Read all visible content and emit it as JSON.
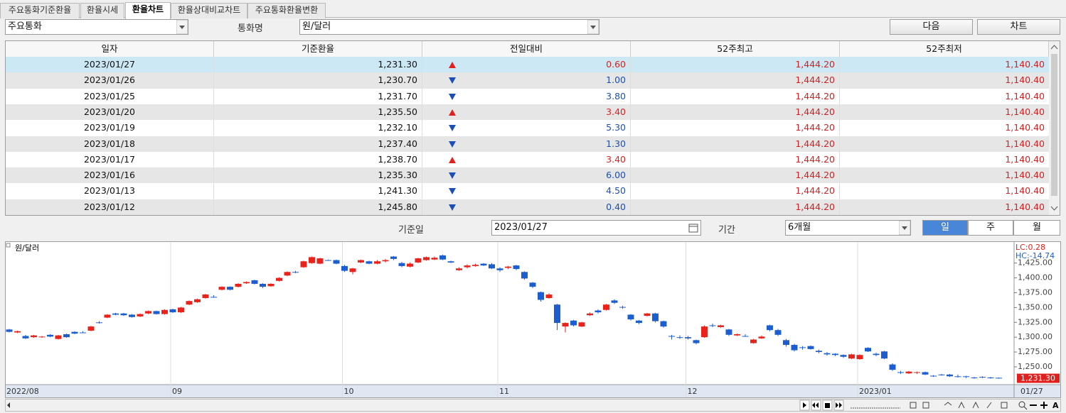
{
  "tabs": [
    "주요통화기준환율",
    "환율시세",
    "환율차트",
    "환율상대비교차트",
    "주요통화환율변환"
  ],
  "active_tab": 2,
  "toolbar": {
    "group": "주요통화",
    "currency_label": "통화명",
    "currency": "원/달러",
    "buttons": [
      "다음",
      "차트"
    ]
  },
  "table": {
    "headers": [
      "일자",
      "기준환율",
      "전일대비",
      "52주최고",
      "52주최저"
    ],
    "selected_row": 0,
    "rows": [
      {
        "date": "2023/01/27",
        "rate": "1,231.30",
        "direction": "up",
        "change": "0.60",
        "high": "1,444.20",
        "low": "1,140.40"
      },
      {
        "date": "2023/01/26",
        "rate": "1,230.70",
        "direction": "down",
        "change": "1.00",
        "high": "1,444.20",
        "low": "1,140.40"
      },
      {
        "date": "2023/01/25",
        "rate": "1,231.70",
        "direction": "down",
        "change": "3.80",
        "high": "1,444.20",
        "low": "1,140.40"
      },
      {
        "date": "2023/01/20",
        "rate": "1,235.50",
        "direction": "up",
        "change": "3.40",
        "high": "1,444.20",
        "low": "1,140.40"
      },
      {
        "date": "2023/01/19",
        "rate": "1,232.10",
        "direction": "down",
        "change": "5.30",
        "high": "1,444.20",
        "low": "1,140.40"
      },
      {
        "date": "2023/01/18",
        "rate": "1,237.40",
        "direction": "down",
        "change": "1.30",
        "high": "1,444.20",
        "low": "1,140.40"
      },
      {
        "date": "2023/01/17",
        "rate": "1,238.70",
        "direction": "up",
        "change": "3.40",
        "high": "1,444.20",
        "low": "1,140.40"
      },
      {
        "date": "2023/01/16",
        "rate": "1,235.30",
        "direction": "down",
        "change": "6.00",
        "high": "1,444.20",
        "low": "1,140.40"
      },
      {
        "date": "2023/01/13",
        "rate": "1,241.30",
        "direction": "down",
        "change": "4.50",
        "high": "1,444.20",
        "low": "1,140.40"
      },
      {
        "date": "2023/01/12",
        "rate": "1,245.80",
        "direction": "down",
        "change": "0.40",
        "high": "1,444.20",
        "low": "1,140.40"
      }
    ]
  },
  "controls": {
    "date_label": "기준일",
    "date": "2023/01/27",
    "period_label": "기간",
    "period": "6개월",
    "period_buttons": [
      "일",
      "주",
      "월"
    ],
    "active_period": 0
  },
  "chart_data": {
    "type": "candlestick",
    "legend": "원/달러",
    "lc_label": "LC:0.28",
    "hc_label": "HC:-14.74",
    "up_color": "#e8231c",
    "down_color": "#1c5ecf",
    "grid": true,
    "ylim": [
      1220,
      1457
    ],
    "yticks": [
      {
        "value": 1250,
        "label": "1,250.00"
      },
      {
        "value": 1275,
        "label": "1,275.00"
      },
      {
        "value": 1300,
        "label": "1,300.00"
      },
      {
        "value": 1325,
        "label": "1,325.00"
      },
      {
        "value": 1350,
        "label": "1,350.00"
      },
      {
        "value": 1375,
        "label": "1,375.00"
      },
      {
        "value": 1400,
        "label": "1,400.00"
      },
      {
        "value": 1425,
        "label": "1,425.00"
      }
    ],
    "last_price_label": "1,231.30",
    "last_date_label": "01/27",
    "categories": [
      "2022/08",
      null,
      null,
      null,
      null,
      null,
      null,
      null,
      null,
      null,
      null,
      null,
      null,
      null,
      null,
      null,
      null,
      null,
      null,
      null,
      "09",
      null,
      null,
      null,
      null,
      null,
      null,
      null,
      null,
      null,
      null,
      null,
      null,
      null,
      null,
      null,
      null,
      null,
      null,
      null,
      null,
      "10",
      null,
      null,
      null,
      null,
      null,
      null,
      null,
      null,
      null,
      null,
      null,
      null,
      null,
      null,
      null,
      null,
      null,
      null,
      "11",
      null,
      null,
      null,
      null,
      null,
      null,
      null,
      null,
      null,
      null,
      null,
      null,
      null,
      null,
      null,
      null,
      null,
      null,
      null,
      null,
      null,
      null,
      "12",
      null,
      null,
      null,
      null,
      null,
      null,
      null,
      null,
      null,
      null,
      null,
      null,
      null,
      null,
      null,
      null,
      null,
      null,
      null,
      null,
      "2023/01",
      null,
      null,
      null,
      null,
      null,
      null,
      null,
      null,
      null,
      null,
      null,
      null,
      null,
      null,
      null,
      null,
      null
    ],
    "ohlc": [
      [
        1313,
        1314,
        1308,
        1309
      ],
      [
        1308,
        1311,
        1307,
        1310
      ],
      [
        1302,
        1304,
        1297,
        1298
      ],
      [
        1300,
        1304,
        1299,
        1303
      ],
      [
        1300,
        1302,
        1299,
        1301
      ],
      [
        1304,
        1305,
        1300,
        1301
      ],
      [
        1297,
        1304,
        1296,
        1303
      ],
      [
        1305,
        1306,
        1299,
        1300
      ],
      [
        1309,
        1310,
        1305,
        1306
      ],
      [
        1308,
        1310,
        1307,
        1308
      ],
      [
        1311,
        1319,
        1310,
        1318
      ],
      [
        1325,
        1327,
        1323,
        1325
      ],
      [
        1333,
        1339,
        1332,
        1338
      ],
      [
        1340,
        1341,
        1337,
        1338
      ],
      [
        1340,
        1341,
        1336,
        1337
      ],
      [
        1338,
        1339,
        1333,
        1334
      ],
      [
        1335,
        1340,
        1334,
        1339
      ],
      [
        1340,
        1345,
        1339,
        1344
      ],
      [
        1344,
        1345,
        1338,
        1339
      ],
      [
        1339,
        1347,
        1338,
        1346
      ],
      [
        1347,
        1348,
        1341,
        1342
      ],
      [
        1342,
        1351,
        1341,
        1350
      ],
      [
        1355,
        1362,
        1354,
        1361
      ],
      [
        1359,
        1365,
        1358,
        1364
      ],
      [
        1366,
        1373,
        1365,
        1372
      ],
      [
        1368,
        1371,
        1367,
        1368
      ],
      [
        1380,
        1386,
        1379,
        1385
      ],
      [
        1385,
        1386,
        1379,
        1380
      ],
      [
        1385,
        1391,
        1384,
        1390
      ],
      [
        1391,
        1394,
        1390,
        1393
      ],
      [
        1396,
        1397,
        1389,
        1390
      ],
      [
        1390,
        1391,
        1383,
        1385
      ],
      [
        1386,
        1391,
        1385,
        1390
      ],
      [
        1395,
        1401,
        1394,
        1400
      ],
      [
        1404,
        1411,
        1403,
        1410
      ],
      [
        1410,
        1412,
        1408,
        1410
      ],
      [
        1418,
        1429,
        1417,
        1428
      ],
      [
        1425,
        1436,
        1424,
        1435
      ],
      [
        1424,
        1434,
        1423,
        1433
      ],
      [
        1430,
        1431,
        1429,
        1430
      ],
      [
        1430,
        1431,
        1423,
        1424
      ],
      [
        1420,
        1422,
        1410,
        1412
      ],
      [
        1410,
        1417,
        1406,
        1416
      ],
      [
        1426,
        1431,
        1425,
        1430
      ],
      [
        1428,
        1429,
        1423,
        1424
      ],
      [
        1424,
        1430,
        1423,
        1428
      ],
      [
        1428,
        1432,
        1426,
        1430
      ],
      [
        1436,
        1437,
        1430,
        1432
      ],
      [
        1425,
        1427,
        1418,
        1420
      ],
      [
        1419,
        1426,
        1418,
        1424
      ],
      [
        1426,
        1434,
        1425,
        1433
      ],
      [
        1430,
        1436,
        1429,
        1435
      ],
      [
        1431,
        1436,
        1430,
        1434
      ],
      [
        1438,
        1439,
        1430,
        1431
      ],
      [
        1428,
        1429,
        1425,
        1426
      ],
      [
        1413,
        1418,
        1412,
        1416
      ],
      [
        1418,
        1423,
        1416,
        1421
      ],
      [
        1420,
        1424,
        1419,
        1422
      ],
      [
        1424,
        1425,
        1420,
        1421
      ],
      [
        1423,
        1425,
        1415,
        1416
      ],
      [
        1416,
        1418,
        1410,
        1413
      ],
      [
        1417,
        1420,
        1415,
        1419
      ],
      [
        1421,
        1422,
        1413,
        1415
      ],
      [
        1410,
        1411,
        1397,
        1399
      ],
      [
        1392,
        1393,
        1383,
        1385
      ],
      [
        1376,
        1377,
        1360,
        1363
      ],
      [
        1366,
        1374,
        1365,
        1372
      ],
      [
        1355,
        1356,
        1312,
        1324
      ],
      [
        1318,
        1325,
        1308,
        1324
      ],
      [
        1328,
        1329,
        1318,
        1320
      ],
      [
        1318,
        1326,
        1317,
        1325
      ],
      [
        1337,
        1342,
        1336,
        1340
      ],
      [
        1345,
        1347,
        1340,
        1342
      ],
      [
        1346,
        1356,
        1345,
        1355
      ],
      [
        1362,
        1364,
        1356,
        1358
      ],
      [
        1351,
        1353,
        1348,
        1351
      ],
      [
        1338,
        1339,
        1328,
        1330
      ],
      [
        1328,
        1329,
        1322,
        1324
      ],
      [
        1336,
        1341,
        1335,
        1340
      ],
      [
        1340,
        1341,
        1325,
        1327
      ],
      [
        1327,
        1328,
        1316,
        1318
      ],
      [
        1302,
        1304,
        1296,
        1302
      ],
      [
        1300,
        1303,
        1297,
        1300
      ],
      [
        1300,
        1302,
        1296,
        1298
      ],
      [
        1295,
        1296,
        1288,
        1290
      ],
      [
        1300,
        1320,
        1299,
        1318
      ],
      [
        1320,
        1323,
        1317,
        1320
      ],
      [
        1317,
        1321,
        1316,
        1320
      ],
      [
        1313,
        1314,
        1302,
        1304
      ],
      [
        1303,
        1306,
        1302,
        1305
      ],
      [
        1302,
        1305,
        1301,
        1302
      ],
      [
        1290,
        1297,
        1289,
        1296
      ],
      [
        1298,
        1303,
        1297,
        1301
      ],
      [
        1320,
        1321,
        1310,
        1312
      ],
      [
        1312,
        1314,
        1302,
        1304
      ],
      [
        1295,
        1297,
        1284,
        1287
      ],
      [
        1287,
        1289,
        1276,
        1278
      ],
      [
        1283,
        1285,
        1279,
        1282
      ],
      [
        1285,
        1286,
        1279,
        1280
      ],
      [
        1277,
        1279,
        1273,
        1275
      ],
      [
        1273,
        1275,
        1269,
        1271
      ],
      [
        1272,
        1273,
        1268,
        1270
      ],
      [
        1270,
        1271,
        1265,
        1267
      ],
      [
        1264,
        1272,
        1263,
        1271
      ],
      [
        1263,
        1271,
        1262,
        1270
      ],
      [
        1282,
        1283,
        1275,
        1276
      ],
      [
        1272,
        1274,
        1268,
        1270
      ],
      [
        1276,
        1277,
        1263,
        1264
      ],
      [
        1254,
        1256,
        1243,
        1245
      ],
      [
        1241,
        1243,
        1238,
        1240
      ],
      [
        1239,
        1243,
        1238,
        1242
      ],
      [
        1240,
        1242,
        1238,
        1241
      ],
      [
        1241,
        1242,
        1236,
        1237
      ],
      [
        1235,
        1236,
        1233,
        1234
      ],
      [
        1237,
        1238,
        1235,
        1236
      ],
      [
        1237,
        1238,
        1233,
        1234
      ],
      [
        1234,
        1237,
        1232,
        1234
      ],
      [
        1234,
        1235,
        1231,
        1233
      ],
      [
        1232,
        1233,
        1230,
        1232
      ],
      [
        1233,
        1234,
        1231,
        1232
      ],
      [
        1232,
        1233,
        1230,
        1231
      ],
      [
        1231.5,
        1232,
        1230,
        1231.3
      ]
    ]
  }
}
